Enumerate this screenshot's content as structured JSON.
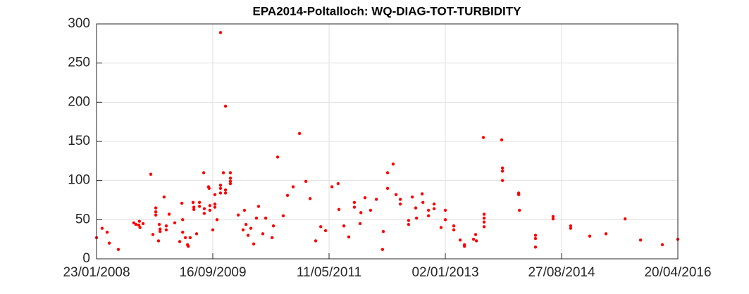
{
  "chart_data": {
    "type": "scatter",
    "title": "EPA2014-Poltalloch: WQ-DIAG-TOT-TURBIDITY",
    "color": "#ff0000",
    "grid": true,
    "xlim": [
      "23/01/2008",
      "20/04/2016"
    ],
    "xticks": [
      "23/01/2008",
      "16/09/2009",
      "11/05/2011",
      "02/01/2013",
      "27/08/2014",
      "20/04/2016"
    ],
    "ylim": [
      0,
      300
    ],
    "yticks": [
      0,
      50,
      100,
      150,
      200,
      250,
      300
    ],
    "x": [
      "23/01/2008",
      "21/02/2008",
      "18/03/2008",
      "29/03/2008",
      "15/05/2008",
      "03/08/2008",
      "14/08/2008",
      "29/08/2008",
      "01/09/2008",
      "04/09/2008",
      "20/09/2008",
      "30/10/2008",
      "10/11/2008",
      "25/11/2008",
      "25/11/2008",
      "25/11/2008",
      "09/12/2008",
      "13/12/2008",
      "17/12/2008",
      "17/12/2008",
      "07/01/2009",
      "18/01/2009",
      "18/01/2009",
      "02/02/2009",
      "03/03/2009",
      "29/03/2009",
      "09/04/2009",
      "13/04/2009",
      "13/04/2009",
      "27/04/2009",
      "08/05/2009",
      "12/05/2009",
      "22/05/2009",
      "06/06/2009",
      "10/06/2009",
      "10/06/2009",
      "24/06/2009",
      "09/07/2009",
      "09/07/2009",
      "31/07/2009",
      "03/08/2009",
      "03/08/2009",
      "25/08/2009",
      "28/08/2009",
      "01/09/2009",
      "01/09/2009",
      "16/09/2009",
      "27/09/2009",
      "27/09/2009",
      "27/09/2009",
      "08/10/2009",
      "26/10/2009",
      "26/10/2009",
      "26/10/2009",
      "26/10/2009",
      "10/11/2009",
      "21/11/2009",
      "21/11/2009",
      "21/11/2009",
      "16/12/2009",
      "16/12/2009",
      "16/12/2009",
      "16/12/2009",
      "26/01/2010",
      "20/02/2010",
      "27/02/2010",
      "07/03/2010",
      "18/03/2010",
      "01/04/2010",
      "16/04/2010",
      "30/04/2010",
      "11/05/2010",
      "02/06/2010",
      "17/06/2010",
      "20/07/2010",
      "27/07/2010",
      "18/08/2010",
      "16/09/2010",
      "08/10/2010",
      "06/11/2010",
      "09/12/2010",
      "11/01/2011",
      "02/02/2011",
      "03/03/2011",
      "29/03/2011",
      "23/04/2011",
      "26/05/2011",
      "27/06/2011",
      "01/07/2011",
      "27/07/2011",
      "21/08/2011",
      "19/09/2011",
      "19/09/2011",
      "19/10/2011",
      "23/10/2011",
      "13/11/2011",
      "12/12/2011",
      "11/01/2012",
      "12/02/2012",
      "16/02/2012",
      "09/03/2012",
      "09/03/2012",
      "07/04/2012",
      "22/04/2012",
      "14/05/2012",
      "14/05/2012",
      "26/06/2012",
      "26/06/2012",
      "15/07/2012",
      "02/08/2012",
      "06/08/2012",
      "04/09/2012",
      "08/09/2012",
      "07/10/2012",
      "07/10/2012",
      "05/11/2012",
      "05/11/2012",
      "11/12/2012",
      "02/01/2013",
      "02/01/2013",
      "15/02/2013",
      "15/02/2013",
      "20/03/2013",
      "11/04/2013",
      "11/04/2013",
      "28/05/2013",
      "08/06/2013",
      "12/06/2013",
      "18/07/2013",
      "22/07/2013",
      "22/07/2013",
      "22/07/2013",
      "22/07/2013",
      "21/10/2013",
      "25/10/2013",
      "25/10/2013",
      "25/10/2013",
      "17/01/2014",
      "17/01/2014",
      "21/01/2014",
      "14/04/2014",
      "14/04/2014",
      "14/04/2014",
      "14/07/2014",
      "14/07/2014",
      "13/10/2014",
      "13/10/2014",
      "20/01/2015",
      "14/04/2015",
      "22/07/2015",
      "10/10/2015",
      "31/01/2016",
      "20/04/2016"
    ],
    "values": [
      27,
      39,
      34,
      20,
      12,
      46,
      44,
      43,
      48,
      40,
      45,
      108,
      31,
      65,
      60,
      56,
      23,
      44,
      38,
      35,
      79,
      42,
      37,
      57,
      46,
      22,
      71,
      50,
      34,
      27,
      18,
      16,
      27,
      72,
      66,
      63,
      32,
      72,
      67,
      110,
      64,
      58,
      92,
      90,
      68,
      62,
      37,
      70,
      66,
      82,
      50,
      289,
      94,
      90,
      84,
      110,
      195,
      88,
      84,
      110,
      103,
      99,
      96,
      56,
      37,
      62,
      44,
      30,
      39,
      19,
      52,
      67,
      32,
      52,
      27,
      42,
      130,
      55,
      81,
      92,
      160,
      99,
      77,
      23,
      41,
      36,
      92,
      96,
      63,
      42,
      28,
      72,
      66,
      45,
      59,
      78,
      62,
      76,
      12,
      35,
      110,
      90,
      121,
      82,
      76,
      70,
      49,
      44,
      79,
      65,
      52,
      83,
      72,
      62,
      55,
      70,
      64,
      40,
      62,
      50,
      42,
      37,
      24,
      18,
      16,
      25,
      31,
      23,
      155,
      57,
      52,
      47,
      41,
      152,
      116,
      112,
      100,
      84,
      82,
      62,
      30,
      26,
      15,
      54,
      51,
      42,
      39,
      29,
      32,
      51,
      24,
      18,
      25
    ]
  }
}
